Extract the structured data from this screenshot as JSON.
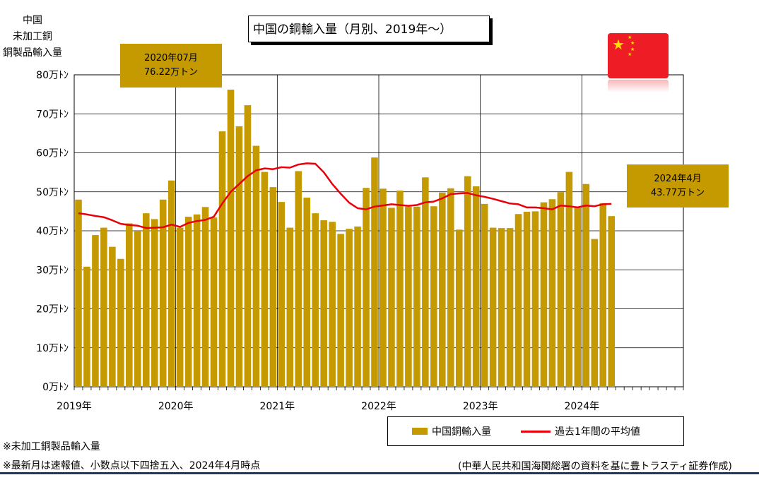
{
  "title": "中国の銅輸入量（月別、2019年～）",
  "ylabel_lines": [
    "中国",
    "未加工銅",
    "銅製品輸入量"
  ],
  "annotations": {
    "peak": {
      "line1": "2020年07月",
      "line2": "76.22万トン"
    },
    "latest": {
      "line1": "2024年4月",
      "line2": "43.77万トン"
    }
  },
  "legend": {
    "bar": "中国銅輸入量",
    "line": "過去1年間の平均値"
  },
  "notes": [
    "※未加工銅製品輸入量",
    "※最新月は速報値、小数点以下四捨五入、2024年4月時点"
  ],
  "source": "(中華人民共和国海関総署の資料を基に豊トラスティ証券作成)",
  "colors": {
    "bar": "#c49a00",
    "line": "#e8000b",
    "flag": "#ee1c25",
    "star": "#ffde00"
  },
  "flag_icon": "china-flag-icon",
  "chart_data": {
    "type": "bar",
    "ylim": [
      0,
      80
    ],
    "y_ticks": [
      "0万ﾄﾝ",
      "10万ﾄﾝ",
      "20万ﾄﾝ",
      "30万ﾄﾝ",
      "40万ﾄﾝ",
      "50万ﾄﾝ",
      "60万ﾄﾝ",
      "70万ﾄﾝ",
      "80万ﾄﾝ"
    ],
    "x_ticks": [
      "2019年",
      "2020年",
      "2021年",
      "2022年",
      "2023年",
      "2024年"
    ],
    "x_start": "2019-01",
    "x_months_shown": 72,
    "grid": true,
    "series": [
      {
        "name": "中国銅輸入量",
        "type": "bar",
        "values": [
          48.0,
          30.8,
          38.9,
          40.8,
          35.9,
          32.8,
          41.9,
          40.0,
          44.5,
          43.0,
          48.0,
          52.9,
          40.8,
          43.6,
          44.2,
          46.1,
          43.4,
          65.5,
          76.2,
          66.8,
          72.2,
          61.8,
          55.1,
          51.2,
          47.4,
          40.8,
          55.3,
          48.5,
          44.5,
          42.7,
          42.3,
          39.2,
          40.5,
          41.1,
          51.0,
          58.8,
          50.8,
          45.9,
          50.3,
          46.2,
          46.2,
          53.7,
          46.3,
          49.8,
          50.9,
          40.3,
          54.0,
          51.4,
          46.9,
          40.8,
          40.7,
          40.7,
          44.3,
          44.9,
          45.0,
          47.3,
          48.1,
          49.9,
          55.1,
          45.9,
          52.0,
          37.9,
          47.1,
          43.77
        ]
      },
      {
        "name": "過去1年間の平均値",
        "type": "line",
        "values": [
          44.5,
          44.2,
          43.8,
          43.5,
          42.7,
          41.8,
          41.5,
          41.3,
          40.7,
          40.8,
          40.9,
          41.6,
          41.0,
          42.0,
          42.5,
          42.8,
          43.6,
          47.0,
          50.0,
          52.0,
          54.0,
          55.5,
          56.0,
          55.8,
          56.3,
          56.2,
          57.0,
          57.3,
          57.2,
          55.0,
          52.0,
          49.5,
          47.2,
          45.8,
          45.5,
          46.2,
          46.5,
          46.8,
          46.6,
          46.4,
          46.6,
          47.3,
          47.5,
          48.3,
          49.4,
          49.6,
          49.7,
          49.1,
          48.7,
          48.2,
          47.6,
          47.0,
          46.8,
          46.0,
          46.0,
          45.8,
          45.5,
          46.5,
          46.3,
          46.0,
          46.5,
          46.3,
          46.8,
          46.9
        ]
      }
    ]
  }
}
